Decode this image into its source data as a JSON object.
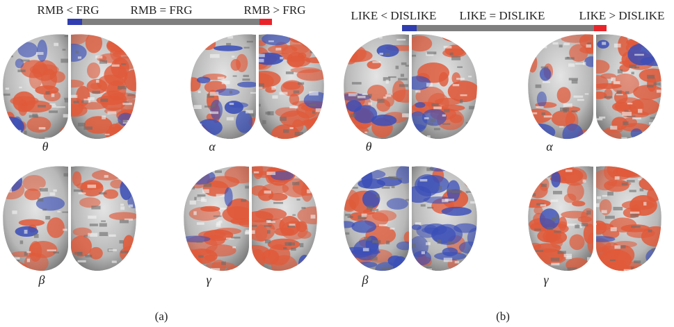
{
  "panels": [
    {
      "legend": {
        "left": "RMB < FRG",
        "middle": "RMB = FRG",
        "right": "RMB > FRG"
      },
      "bands": [
        "θ",
        "α",
        "β",
        "γ"
      ],
      "caption": "(a)"
    },
    {
      "legend": {
        "left": "LIKE < DISLIKE",
        "middle": "LIKE = DISLIKE",
        "right": "LIKE > DISLIKE"
      },
      "bands": [
        "θ",
        "α",
        "β",
        "γ"
      ],
      "caption": "(b)"
    }
  ]
}
